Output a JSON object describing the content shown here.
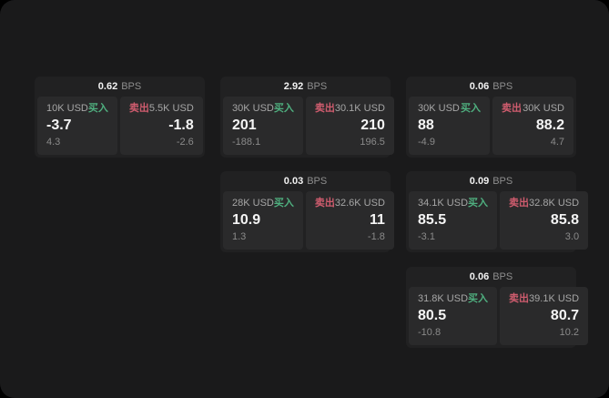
{
  "labels": {
    "bps_unit": "BPS",
    "buy": "买入",
    "sell": "卖出"
  },
  "colors": {
    "window_bg": "#1a1a1b",
    "card_bg": "#212122",
    "panel_bg": "#2a2a2b",
    "buy_green": "#4faf7f",
    "sell_red": "#cf5c6e",
    "primary_text": "#f5f5f5",
    "secondary_text": "#a6a6a6",
    "muted_text": "#8a8a8a"
  },
  "cards": [
    {
      "grid": {
        "row": 0,
        "col": 0
      },
      "bps": "0.62",
      "buy": {
        "amount": "10K USD",
        "value": "-3.7",
        "change": "4.3"
      },
      "sell": {
        "amount": "5.5K USD",
        "value": "-1.8",
        "change": "-2.6"
      }
    },
    {
      "grid": {
        "row": 0,
        "col": 1
      },
      "bps": "2.92",
      "buy": {
        "amount": "30K USD",
        "value": "201",
        "change": "-188.1"
      },
      "sell": {
        "amount": "30.1K USD",
        "value": "210",
        "change": "196.5"
      }
    },
    {
      "grid": {
        "row": 0,
        "col": 2
      },
      "bps": "0.06",
      "buy": {
        "amount": "30K USD",
        "value": "88",
        "change": "-4.9"
      },
      "sell": {
        "amount": "30K USD",
        "value": "88.2",
        "change": "4.7"
      }
    },
    {
      "grid": {
        "row": 1,
        "col": 1
      },
      "bps": "0.03",
      "buy": {
        "amount": "28K USD",
        "value": "10.9",
        "change": "1.3"
      },
      "sell": {
        "amount": "32.6K USD",
        "value": "11",
        "change": "-1.8"
      }
    },
    {
      "grid": {
        "row": 1,
        "col": 2
      },
      "bps": "0.09",
      "buy": {
        "amount": "34.1K USD",
        "value": "85.5",
        "change": "-3.1"
      },
      "sell": {
        "amount": "32.8K USD",
        "value": "85.8",
        "change": "3.0"
      }
    },
    {
      "grid": {
        "row": 2,
        "col": 2
      },
      "bps": "0.06",
      "buy": {
        "amount": "31.8K USD",
        "value": "80.5",
        "change": "-10.8"
      },
      "sell": {
        "amount": "39.1K USD",
        "value": "80.7",
        "change": "10.2"
      }
    }
  ]
}
